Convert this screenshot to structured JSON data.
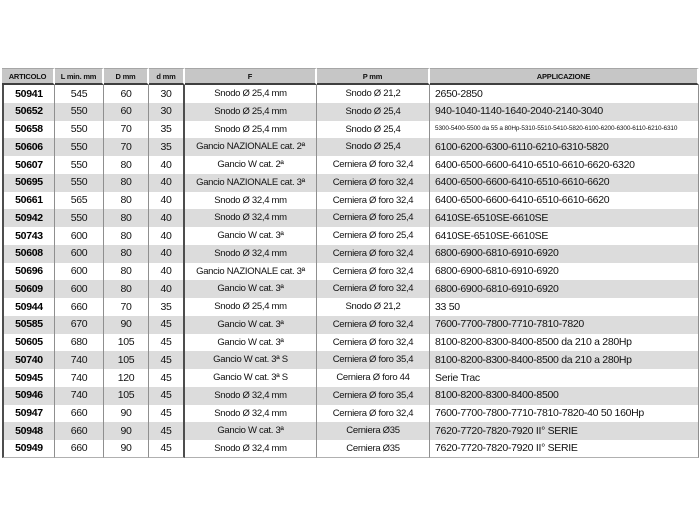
{
  "table": {
    "columns": [
      {
        "key": "articolo",
        "label": "ARTICOLO"
      },
      {
        "key": "l_min_mm",
        "label": "L min. mm"
      },
      {
        "key": "D_mm",
        "label": "D mm"
      },
      {
        "key": "d_mm",
        "label": "d mm"
      },
      {
        "key": "f",
        "label": "F"
      },
      {
        "key": "p_mm",
        "label": "P mm"
      },
      {
        "key": "applicazione",
        "label": "APPLICAZIONE"
      }
    ],
    "rows": [
      [
        "50941",
        "545",
        "60",
        "30",
        "Snodo Ø 25,4 mm",
        "Snodo Ø 21,2",
        "2650-2850"
      ],
      [
        "50652",
        "550",
        "60",
        "30",
        "Snodo Ø 25,4 mm",
        "Snodo Ø 25,4",
        "940-1040-1140-1640-2040-2140-3040"
      ],
      [
        "50658",
        "550",
        "70",
        "35",
        "Snodo Ø 25,4 mm",
        "Snodo Ø 25,4",
        "5300-5400-5500 da 55 a 80Hp-5310-5510-5410-5820-6100-6200-6300-6110-6210-6310"
      ],
      [
        "50606",
        "550",
        "70",
        "35",
        "Gancio NAZIONALE cat. 2ª",
        "Snodo Ø 25,4",
        "6100-6200-6300-6110-6210-6310-5820"
      ],
      [
        "50607",
        "550",
        "80",
        "40",
        "Gancio W cat. 2ª",
        "Cerniera Ø foro 32,4",
        "6400-6500-6600-6410-6510-6610-6620-6320"
      ],
      [
        "50695",
        "550",
        "80",
        "40",
        "Gancio NAZIONALE cat. 3ª",
        "Cerniera Ø foro 32,4",
        "6400-6500-6600-6410-6510-6610-6620"
      ],
      [
        "50661",
        "565",
        "80",
        "40",
        "Snodo Ø 32,4 mm",
        "Cerniera Ø foro 32,4",
        "6400-6500-6600-6410-6510-6610-6620"
      ],
      [
        "50942",
        "550",
        "80",
        "40",
        "Snodo Ø 32,4 mm",
        "Cerniera Ø foro 25,4",
        "6410SE-6510SE-6610SE"
      ],
      [
        "50743",
        "600",
        "80",
        "40",
        "Gancio W cat. 3ª",
        "Cerniera Ø foro 25,4",
        "6410SE-6510SE-6610SE"
      ],
      [
        "50608",
        "600",
        "80",
        "40",
        "Snodo Ø 32,4 mm",
        "Cerniera Ø foro 32,4",
        "6800-6900-6810-6910-6920"
      ],
      [
        "50696",
        "600",
        "80",
        "40",
        "Gancio NAZIONALE cat. 3ª",
        "Cerniera Ø foro 32,4",
        "6800-6900-6810-6910-6920"
      ],
      [
        "50609",
        "600",
        "80",
        "40",
        "Gancio W cat. 3ª",
        "Cerniera Ø foro 32,4",
        "6800-6900-6810-6910-6920"
      ],
      [
        "50944",
        "660",
        "70",
        "35",
        "Snodo Ø 25,4 mm",
        "Snodo Ø 21,2",
        "33 50"
      ],
      [
        "50585",
        "670",
        "90",
        "45",
        "Gancio W cat. 3ª",
        "Cerniera Ø foro 32,4",
        "7600-7700-7800-7710-7810-7820"
      ],
      [
        "50605",
        "680",
        "105",
        "45",
        "Gancio W cat. 3ª",
        "Cerniera Ø foro 32,4",
        "8100-8200-8300-8400-8500 da 210 a 280Hp"
      ],
      [
        "50740",
        "740",
        "105",
        "45",
        "Gancio W cat. 3ª S",
        "Cerniera Ø foro 35,4",
        "8100-8200-8300-8400-8500 da 210 a 280Hp"
      ],
      [
        "50945",
        "740",
        "120",
        "45",
        "Gancio W cat. 3ª S",
        "Cerniera Ø foro 44",
        "Serie Trac"
      ],
      [
        "50946",
        "740",
        "105",
        "45",
        "Snodo Ø 32,4 mm",
        "Cerniera Ø foro 35,4",
        "8100-8200-8300-8400-8500"
      ],
      [
        "50947",
        "660",
        "90",
        "45",
        "Snodo Ø 32,4 mm",
        "Cerniera Ø foro 32,4",
        "7600-7700-7800-7710-7810-7820-40 50 160Hp"
      ],
      [
        "50948",
        "660",
        "90",
        "45",
        "Gancio W cat. 3ª",
        "Cerniera Ø35",
        "7620-7720-7820-7920 II° SERIE"
      ],
      [
        "50949",
        "660",
        "90",
        "45",
        "Snodo Ø 32,4 mm",
        "Cerniera Ø35",
        "7620-7720-7820-7920 II° SERIE"
      ]
    ]
  },
  "colors": {
    "header_bg": "#c6c6c6",
    "row_alt_bg": "#dcdcdc",
    "border_dark": "#3f3f3f",
    "border_light": "#8f8f8f",
    "text": "#111111"
  }
}
